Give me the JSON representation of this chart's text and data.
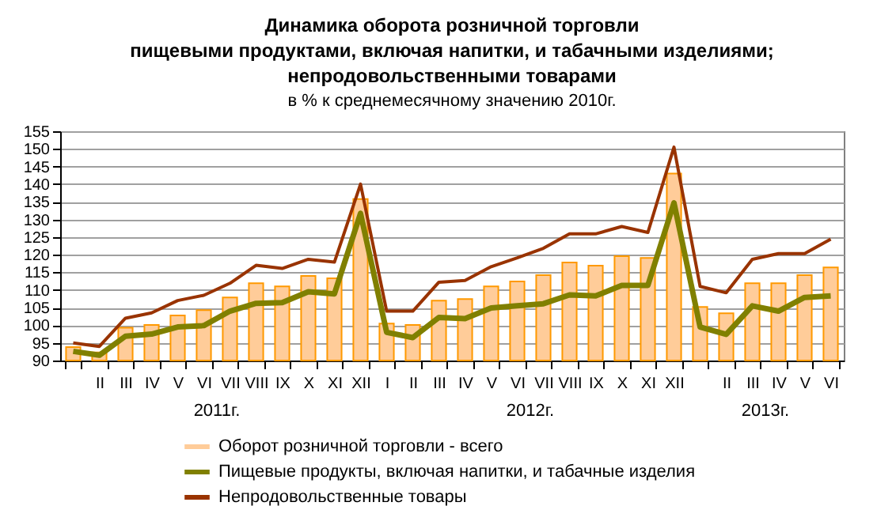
{
  "chart_data": {
    "type": "bar",
    "title": [
      "Динамика оборота розничной торговли",
      "пищевыми продуктами, включая напитки, и табачными изделиями;",
      "непродовольственными товарами"
    ],
    "subtitle": "в % к среднемесячному значению 2010г.",
    "categories": [
      null,
      "II",
      "III",
      "IV",
      "V",
      "VI",
      "VII",
      "VIII",
      "IX",
      "X",
      "XI",
      "XII",
      "I",
      "II",
      "III",
      "IV",
      "V",
      "VI",
      "VII",
      "VIII",
      "IX",
      "X",
      "XI",
      "XII",
      null,
      "II",
      "III",
      "IV",
      "V",
      "VI"
    ],
    "series": [
      {
        "name": "Оборот розничной торговли - всего",
        "color": "#ffcc99",
        "values": [
          93.8,
          92.3,
          99.3,
          100.1,
          102.8,
          104.3,
          107.9,
          111.9,
          111.0,
          114.0,
          113.3,
          135.8,
          100.5,
          100.1,
          107.0,
          107.4,
          111.0,
          112.4,
          114.2,
          117.8,
          116.9,
          119.6,
          119.1,
          143.0,
          105.2,
          103.4,
          111.9,
          111.9,
          114.2,
          116.4
        ]
      },
      {
        "name": "Пищевые продукты, включая напитки, и табачные изделия",
        "type": "line",
        "color": "#808000",
        "values": [
          92.6,
          91.5,
          96.9,
          97.5,
          99.5,
          99.9,
          104.0,
          106.2,
          106.4,
          109.5,
          108.9,
          131.7,
          98.0,
          96.5,
          102.2,
          101.9,
          104.9,
          105.5,
          106.1,
          108.6,
          108.3,
          111.3,
          111.3,
          134.7,
          99.5,
          97.4,
          105.5,
          104.0,
          107.9,
          108.3
        ]
      },
      {
        "name": "Непродовольственные товары",
        "type": "line",
        "color": "#993300",
        "values": [
          95.0,
          94.0,
          102.0,
          103.5,
          107.0,
          108.5,
          111.9,
          117.0,
          116.1,
          118.7,
          117.9,
          140.0,
          104.0,
          104.0,
          112.2,
          112.7,
          116.6,
          119.1,
          121.8,
          125.9,
          125.9,
          128.0,
          126.3,
          150.5,
          111.0,
          109.2,
          118.7,
          120.3,
          120.3,
          124.4
        ]
      }
    ],
    "annotations": [
      "2011г.",
      "2012г.",
      "2013г."
    ],
    "ylim": [
      90,
      155
    ],
    "yticks": [
      90,
      95,
      100,
      105,
      110,
      115,
      120,
      125,
      130,
      135,
      140,
      145,
      150,
      155
    ],
    "grid": "y",
    "legend": "bottom"
  }
}
